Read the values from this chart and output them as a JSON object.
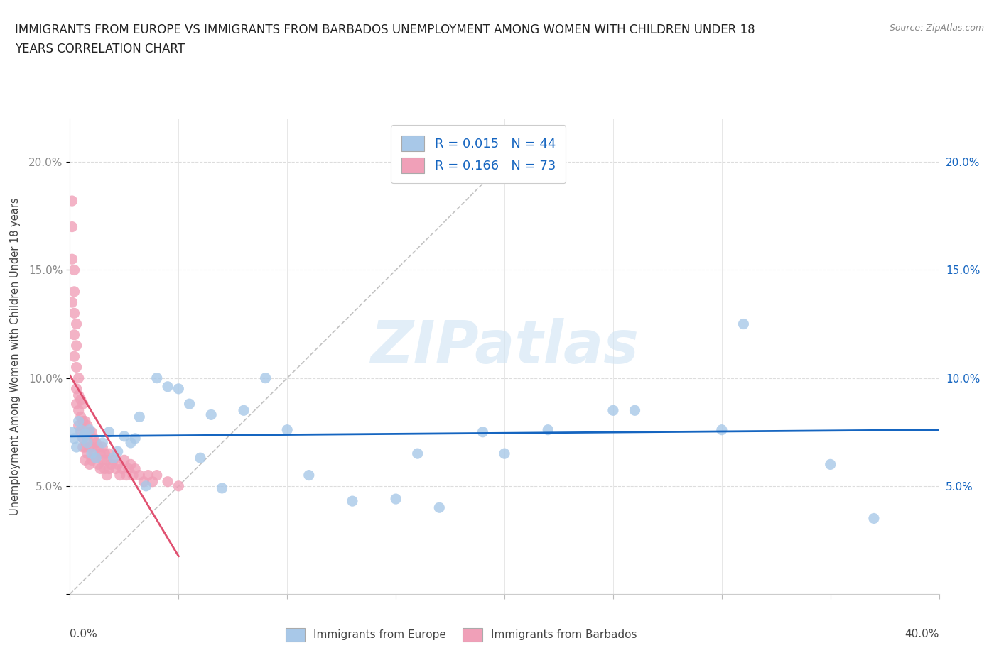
{
  "title_line1": "IMMIGRANTS FROM EUROPE VS IMMIGRANTS FROM BARBADOS UNEMPLOYMENT AMONG WOMEN WITH CHILDREN UNDER 18",
  "title_line2": "YEARS CORRELATION CHART",
  "source": "Source: ZipAtlas.com",
  "ylabel": "Unemployment Among Women with Children Under 18 years",
  "xlim": [
    0,
    0.4
  ],
  "ylim": [
    0,
    0.22
  ],
  "europe_color": "#a8c8e8",
  "barbados_color": "#f0a0b8",
  "europe_trend_color": "#1565c0",
  "barbados_trend_color": "#e05070",
  "diag_color": "#bbbbbb",
  "watermark": "ZIPatlas",
  "legend_europe": "R = 0.015   N = 44",
  "legend_barbados": "R = 0.166   N = 73",
  "legend_europe_bottom": "Immigrants from Europe",
  "legend_barbados_bottom": "Immigrants from Barbados",
  "europe_x": [
    0.001,
    0.002,
    0.003,
    0.004,
    0.005,
    0.006,
    0.007,
    0.008,
    0.009,
    0.01,
    0.012,
    0.015,
    0.018,
    0.02,
    0.022,
    0.025,
    0.028,
    0.03,
    0.032,
    0.035,
    0.04,
    0.045,
    0.05,
    0.055,
    0.06,
    0.065,
    0.07,
    0.08,
    0.09,
    0.1,
    0.11,
    0.13,
    0.15,
    0.16,
    0.17,
    0.19,
    0.2,
    0.22,
    0.25,
    0.26,
    0.3,
    0.31,
    0.35,
    0.37
  ],
  "europe_y": [
    0.075,
    0.072,
    0.068,
    0.08,
    0.076,
    0.072,
    0.074,
    0.07,
    0.076,
    0.065,
    0.063,
    0.07,
    0.075,
    0.063,
    0.066,
    0.073,
    0.07,
    0.072,
    0.082,
    0.05,
    0.1,
    0.096,
    0.095,
    0.088,
    0.063,
    0.083,
    0.049,
    0.085,
    0.1,
    0.076,
    0.055,
    0.043,
    0.044,
    0.065,
    0.04,
    0.075,
    0.065,
    0.076,
    0.085,
    0.085,
    0.076,
    0.125,
    0.06,
    0.035
  ],
  "barbados_x": [
    0.001,
    0.001,
    0.001,
    0.001,
    0.002,
    0.002,
    0.002,
    0.002,
    0.002,
    0.003,
    0.003,
    0.003,
    0.003,
    0.003,
    0.004,
    0.004,
    0.004,
    0.004,
    0.005,
    0.005,
    0.005,
    0.006,
    0.006,
    0.006,
    0.006,
    0.007,
    0.007,
    0.007,
    0.007,
    0.008,
    0.008,
    0.008,
    0.009,
    0.009,
    0.009,
    0.01,
    0.01,
    0.01,
    0.011,
    0.011,
    0.012,
    0.012,
    0.013,
    0.013,
    0.014,
    0.014,
    0.015,
    0.015,
    0.016,
    0.016,
    0.017,
    0.017,
    0.018,
    0.018,
    0.019,
    0.02,
    0.021,
    0.022,
    0.023,
    0.024,
    0.025,
    0.026,
    0.027,
    0.028,
    0.029,
    0.03,
    0.032,
    0.034,
    0.036,
    0.038,
    0.04,
    0.045,
    0.05
  ],
  "barbados_y": [
    0.182,
    0.17,
    0.155,
    0.135,
    0.15,
    0.14,
    0.13,
    0.12,
    0.11,
    0.125,
    0.115,
    0.105,
    0.095,
    0.088,
    0.1,
    0.092,
    0.085,
    0.078,
    0.09,
    0.082,
    0.075,
    0.088,
    0.08,
    0.072,
    0.068,
    0.08,
    0.075,
    0.068,
    0.062,
    0.078,
    0.072,
    0.065,
    0.075,
    0.068,
    0.06,
    0.075,
    0.068,
    0.062,
    0.072,
    0.065,
    0.07,
    0.063,
    0.068,
    0.06,
    0.065,
    0.058,
    0.068,
    0.062,
    0.065,
    0.058,
    0.062,
    0.055,
    0.065,
    0.058,
    0.06,
    0.062,
    0.058,
    0.06,
    0.055,
    0.058,
    0.062,
    0.055,
    0.058,
    0.06,
    0.055,
    0.058,
    0.055,
    0.052,
    0.055,
    0.052,
    0.055,
    0.052,
    0.05
  ]
}
